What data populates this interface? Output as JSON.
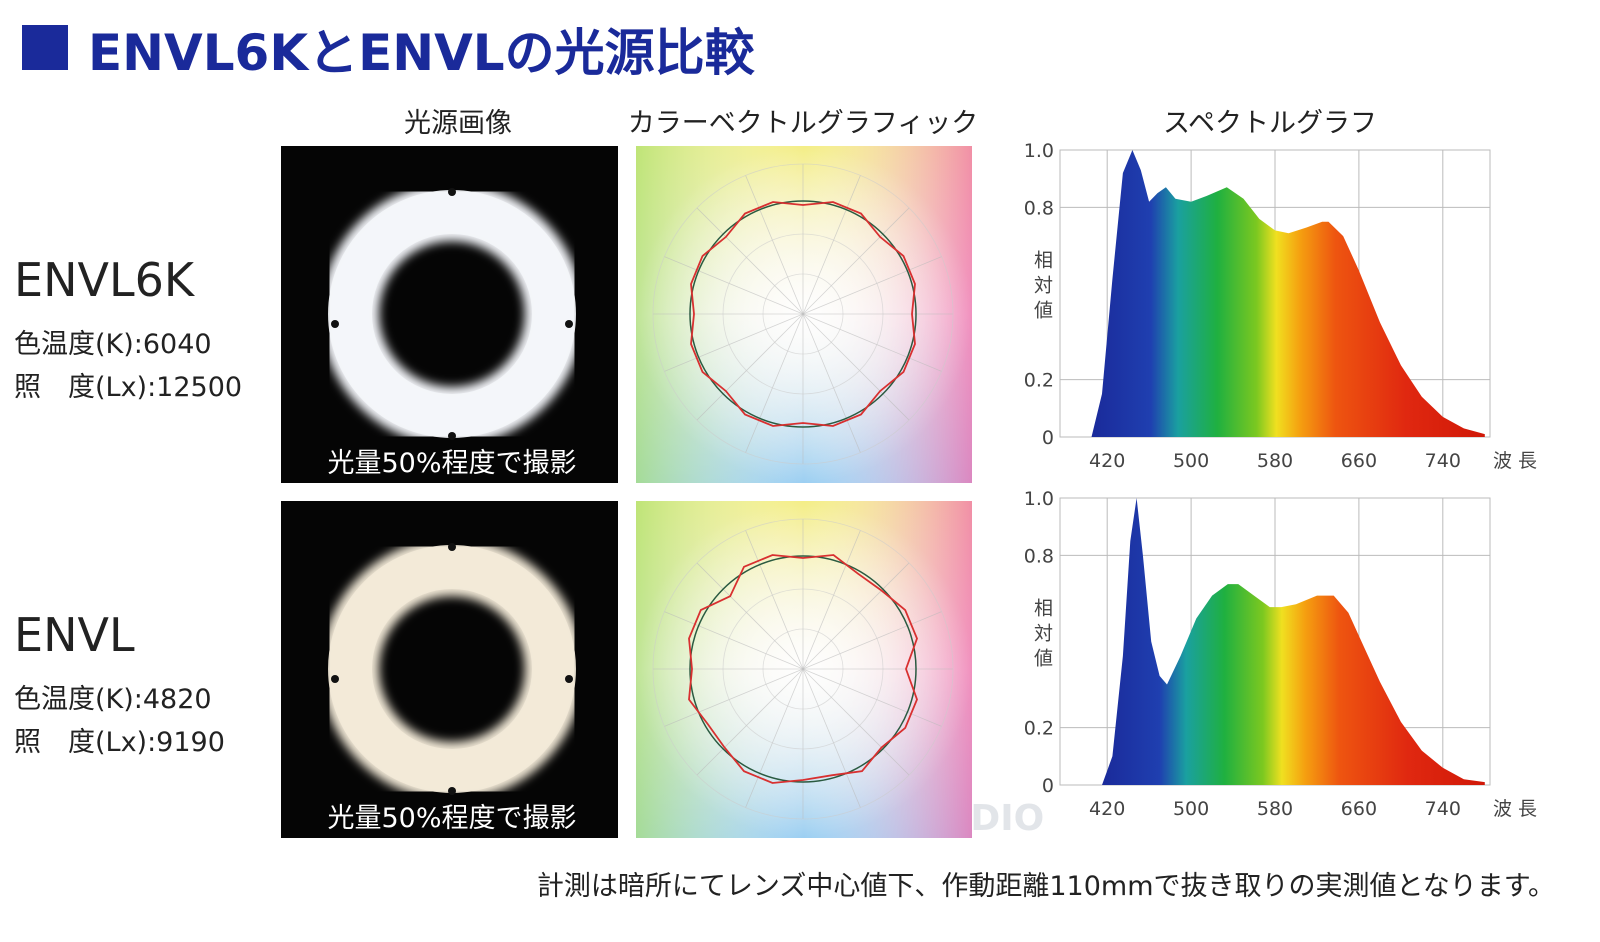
{
  "header": {
    "title": "ENVL6KとENVLの光源比較"
  },
  "columns": [
    "光源画像",
    "カラーベクトルグラフィック",
    "スペクトルグラフ"
  ],
  "rows": [
    {
      "name": "ENVL6K",
      "color_temperature": "色温度(K):6040",
      "illuminance": "照　度(Lx):12500",
      "photo_caption": "光量50%程度で撮影",
      "chart_data": {
        "type": "area",
        "xlabel": "波長",
        "ylabel": "相対値",
        "x": [
          405,
          415,
          425,
          435,
          444,
          452,
          460,
          468,
          476,
          485,
          500,
          515,
          534,
          550,
          565,
          580,
          593,
          610,
          625,
          631,
          645,
          660,
          680,
          700,
          720,
          740,
          760,
          780
        ],
        "values": [
          0,
          0.15,
          0.55,
          0.92,
          1.0,
          0.93,
          0.82,
          0.85,
          0.87,
          0.83,
          0.82,
          0.84,
          0.87,
          0.83,
          0.76,
          0.72,
          0.71,
          0.73,
          0.75,
          0.75,
          0.7,
          0.58,
          0.4,
          0.25,
          0.14,
          0.07,
          0.03,
          0.01
        ],
        "xlim": [
          375,
          785
        ],
        "ylim": [
          0,
          1
        ],
        "xticks": [
          420,
          500,
          580,
          660,
          740
        ],
        "yticks": [
          0,
          0.2,
          0.8,
          {
            "value": 1,
            "label": "1.0"
          }
        ],
        "grid": true
      }
    },
    {
      "name": "ENVL",
      "color_temperature": "色温度(K):4820",
      "illuminance": "照　度(Lx):9190",
      "photo_caption": "光量50%程度で撮影",
      "chart_data": {
        "type": "area",
        "xlabel": "波長",
        "ylabel": "相対値",
        "x": [
          415,
          425,
          435,
          442,
          448,
          454,
          462,
          470,
          477,
          490,
          505,
          520,
          535,
          545,
          560,
          575,
          586,
          600,
          620,
          636,
          650,
          665,
          680,
          700,
          720,
          740,
          760,
          780
        ],
        "values": [
          0,
          0.1,
          0.45,
          0.85,
          1.0,
          0.8,
          0.5,
          0.38,
          0.35,
          0.45,
          0.58,
          0.66,
          0.7,
          0.7,
          0.66,
          0.62,
          0.62,
          0.63,
          0.66,
          0.66,
          0.6,
          0.48,
          0.36,
          0.22,
          0.12,
          0.06,
          0.02,
          0.01
        ],
        "xlim": [
          375,
          785
        ],
        "ylim": [
          0,
          1
        ],
        "xticks": [
          420,
          500,
          580,
          660,
          740
        ],
        "yticks": [
          0,
          0.2,
          0.8,
          {
            "value": 1,
            "label": "1.0"
          }
        ],
        "grid": true
      }
    }
  ],
  "watermark": "LOUPE STUDIO",
  "footnote": "計測は暗所にてレンズ中心値下、作動距離110mmで抜き取りの実測値となります。"
}
